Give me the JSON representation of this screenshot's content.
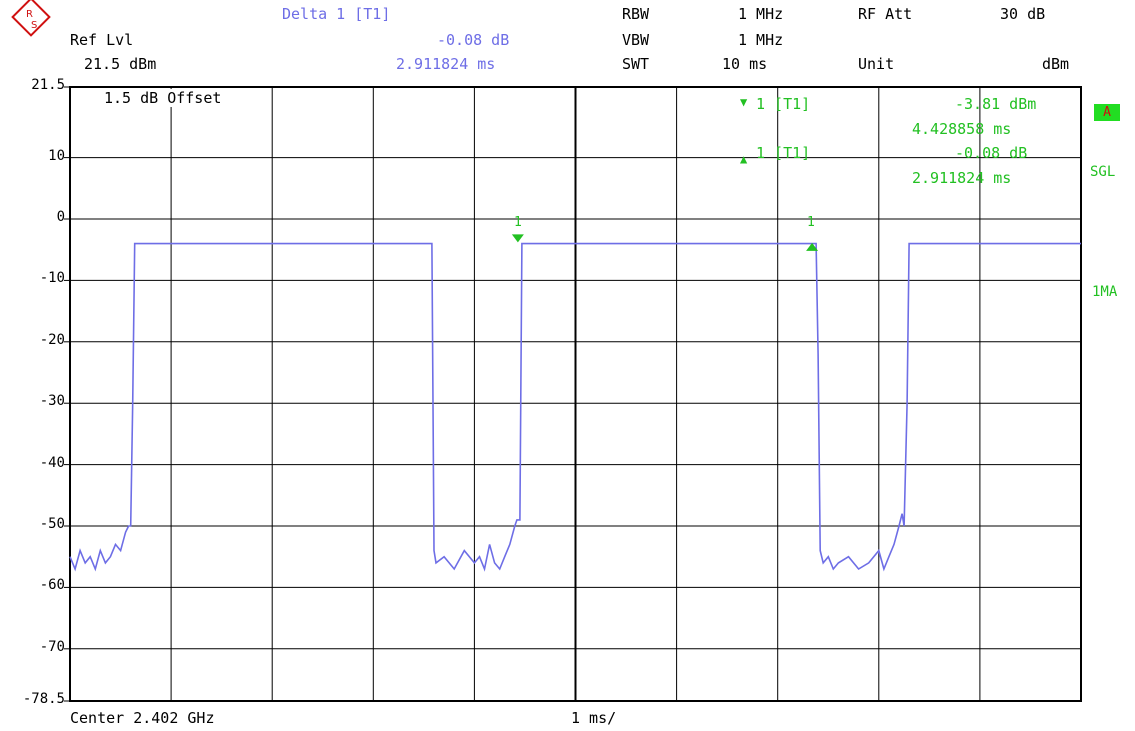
{
  "header": {
    "ref_label": "Ref Lvl",
    "ref_value": "21.5 dBm",
    "delta_title": "Delta 1 [T1]",
    "delta_value": "-0.08 dB",
    "delta_time": "2.911824 ms",
    "rbw_label": "RBW",
    "rbw_value": "1 MHz",
    "vbw_label": "VBW",
    "vbw_value": "1 MHz",
    "swt_label": "SWT",
    "swt_value": "10 ms",
    "rfatt_label": "RF Att",
    "rfatt_value": "30 dB",
    "unit_label": "Unit",
    "unit_value": "dBm"
  },
  "markers": {
    "m1_label": "1 [T1]",
    "m1_value": "-3.81 dBm",
    "m1_time": "4.428858 ms",
    "d1_label": "1 [T1]",
    "d1_value": "-0.08 dB",
    "d1_time": "2.911824 ms",
    "trace_marker_label": "1",
    "delta_marker_label": "1"
  },
  "side": {
    "badge": "A",
    "mode": "SGL",
    "trace": "1MA"
  },
  "offset_label": "1.5 dB Offset",
  "footer": {
    "center": "Center 2.402 GHz",
    "span": "1 ms/"
  },
  "colors": {
    "trace": "#6e6ee6",
    "marker": "#22c022"
  },
  "icon": "rohde-schwarz-logo-icon",
  "chart_data": {
    "type": "line",
    "xlim": [
      0,
      10
    ],
    "ylim": [
      -78.5,
      21.5
    ],
    "y_ticks": [
      21.5,
      10,
      0,
      -10,
      -20,
      -30,
      -40,
      -50,
      -60,
      -70,
      -78.5
    ],
    "y_tick_labels": [
      "21.5",
      "10",
      "0",
      "-10",
      "-20",
      "-30",
      "-40",
      "-50",
      "-60",
      "-70",
      "-78.5"
    ],
    "grid": true,
    "series": [
      {
        "x": [
          0.0,
          0.05,
          0.1,
          0.15,
          0.2,
          0.25,
          0.3,
          0.35,
          0.4,
          0.45,
          0.5,
          0.55,
          0.58,
          0.6,
          0.62,
          0.64,
          0.66,
          0.8,
          1.5,
          2.5,
          3.5,
          3.58,
          3.6,
          3.62,
          3.7,
          3.8,
          3.9,
          4.0,
          4.05,
          4.1,
          4.15,
          4.2,
          4.25,
          4.3,
          4.35,
          4.4,
          4.42,
          4.45,
          4.47,
          4.5,
          5.5,
          6.5,
          7.35,
          7.38,
          7.4,
          7.42,
          7.45,
          7.5,
          7.55,
          7.6,
          7.7,
          7.8,
          7.9,
          8.0,
          8.05,
          8.1,
          8.15,
          8.2,
          8.23,
          8.25,
          8.28,
          8.3,
          8.35,
          8.5,
          9.5,
          10.0
        ],
        "y": [
          -55,
          -57,
          -54,
          -56,
          -55,
          -57,
          -54,
          -56,
          -55,
          -53,
          -54,
          -51,
          -50,
          -50,
          -30,
          -4,
          -4,
          -4,
          -4,
          -4,
          -4,
          -4,
          -54,
          -56,
          -55,
          -57,
          -54,
          -56,
          -55,
          -57,
          -53,
          -56,
          -57,
          -55,
          -53,
          -50,
          -49,
          -49,
          -4,
          -4,
          -4,
          -4,
          -4,
          -4,
          -22,
          -54,
          -56,
          -55,
          -57,
          -56,
          -55,
          -57,
          -56,
          -54,
          -57,
          -55,
          -53,
          -50,
          -48,
          -50,
          -30,
          -4,
          -4,
          -4,
          -4,
          -4
        ]
      }
    ],
    "trace_marker": {
      "x": 4.43,
      "y": -3.81
    },
    "delta_marker": {
      "x": 7.34,
      "y": -3.89
    }
  }
}
